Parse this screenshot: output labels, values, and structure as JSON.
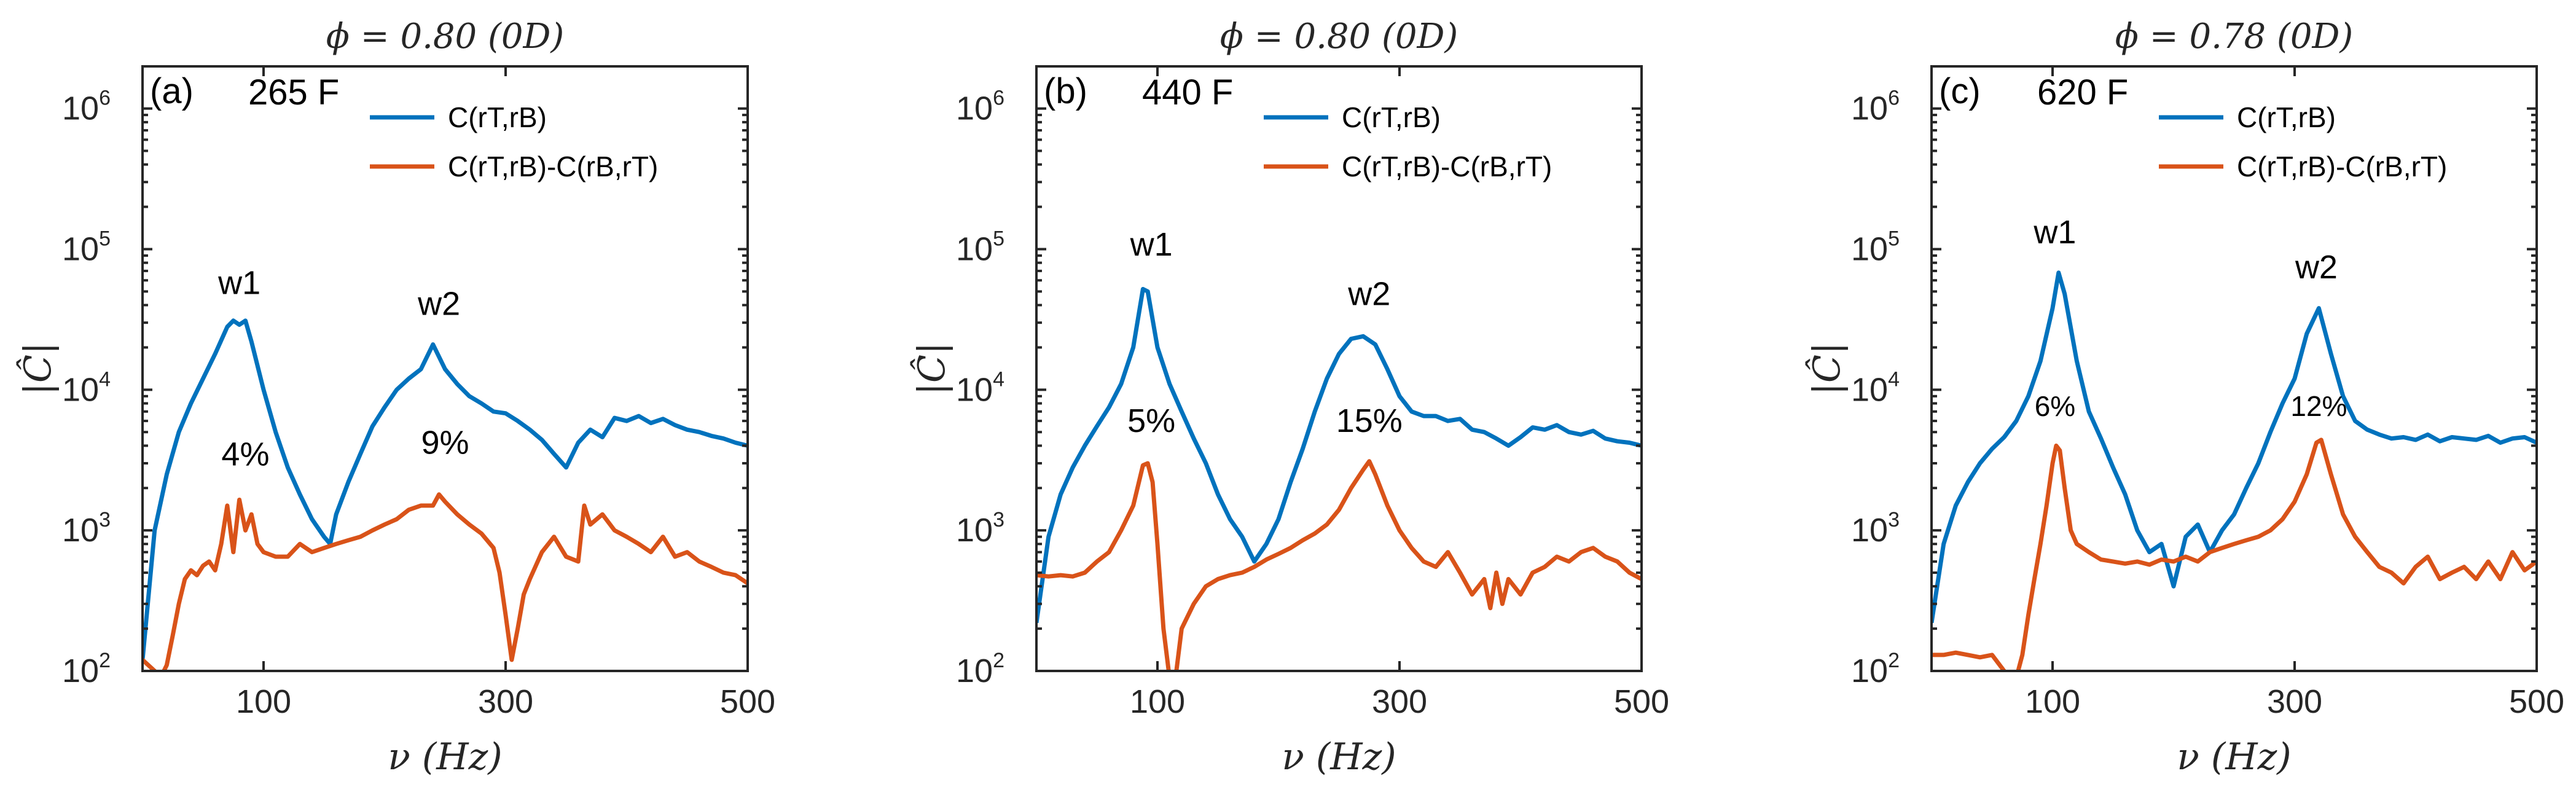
{
  "chart_data": [
    {
      "type": "line",
      "panel": "(a)",
      "fuel_label": "265 F",
      "title": "ϕ = 0.80 (0D)",
      "xlabel": "ν (Hz)",
      "ylabel": "|Ĉ|",
      "xlim": [
        0,
        500
      ],
      "ylim_log10": [
        2,
        6.3
      ],
      "xticks": [
        100,
        300,
        500
      ],
      "yticks": [
        {
          "base": "10",
          "exp": "2"
        },
        {
          "base": "10",
          "exp": "3"
        },
        {
          "base": "10",
          "exp": "4"
        },
        {
          "base": "10",
          "exp": "5"
        },
        {
          "base": "10",
          "exp": "6"
        }
      ],
      "legend_position": "top-right",
      "series": [
        {
          "name": "C(rT,rB)",
          "color": "#0072BD",
          "x": [
            0,
            10,
            20,
            30,
            40,
            50,
            60,
            70,
            75,
            80,
            85,
            90,
            100,
            110,
            120,
            130,
            140,
            150,
            155,
            160,
            170,
            180,
            190,
            200,
            210,
            220,
            230,
            240,
            250,
            260,
            270,
            280,
            290,
            300,
            310,
            320,
            330,
            340,
            350,
            360,
            370,
            380,
            390,
            400,
            410,
            420,
            430,
            440,
            450,
            460,
            470,
            480,
            490,
            500
          ],
          "y": [
            120,
            1000,
            2500,
            5000,
            8000,
            12000,
            18000,
            28000,
            31000,
            29000,
            31000,
            22000,
            10000,
            5000,
            2800,
            1800,
            1200,
            900,
            800,
            1300,
            2200,
            3500,
            5500,
            7500,
            10000,
            12000,
            14000,
            21000,
            14000,
            11000,
            9000,
            8000,
            7000,
            6800,
            6000,
            5200,
            4400,
            3500,
            2800,
            4200,
            5200,
            4600,
            6300,
            6000,
            6500,
            5800,
            6200,
            5600,
            5200,
            5000,
            4700,
            4500,
            4200,
            4000
          ]
        },
        {
          "name": "C(rT,rB)-C(rB,rT)",
          "color": "#D95319",
          "x": [
            0,
            10,
            15,
            20,
            25,
            30,
            35,
            40,
            45,
            50,
            55,
            60,
            65,
            70,
            75,
            80,
            85,
            90,
            95,
            100,
            110,
            120,
            130,
            140,
            150,
            160,
            170,
            180,
            190,
            200,
            210,
            220,
            230,
            240,
            245,
            250,
            260,
            270,
            280,
            290,
            295,
            300,
            305,
            310,
            315,
            320,
            330,
            340,
            350,
            360,
            365,
            370,
            380,
            390,
            400,
            410,
            420,
            430,
            440,
            450,
            460,
            470,
            480,
            490,
            500
          ],
          "y": [
            120,
            100,
            90,
            110,
            180,
            300,
            450,
            520,
            480,
            560,
            600,
            520,
            800,
            1500,
            700,
            1650,
            1000,
            1300,
            800,
            700,
            650,
            650,
            800,
            700,
            750,
            800,
            850,
            900,
            1000,
            1100,
            1200,
            1400,
            1500,
            1500,
            1800,
            1600,
            1300,
            1100,
            950,
            750,
            500,
            250,
            120,
            200,
            350,
            450,
            700,
            900,
            650,
            600,
            1500,
            1100,
            1300,
            1000,
            900,
            800,
            700,
            900,
            650,
            700,
            600,
            550,
            500,
            480,
            420
          ]
        }
      ],
      "annotations": [
        {
          "text": "w1",
          "x": 80,
          "y": 48000
        },
        {
          "text": "w2",
          "x": 245,
          "y": 34000
        },
        {
          "text": "4%",
          "x": 85,
          "y": 2900
        },
        {
          "text": "9%",
          "x": 250,
          "y": 3500
        }
      ]
    },
    {
      "type": "line",
      "panel": "(b)",
      "fuel_label": "440 F",
      "title": "ϕ = 0.80 (0D)",
      "xlabel": "ν (Hz)",
      "ylabel": "|Ĉ|",
      "xlim": [
        0,
        500
      ],
      "ylim_log10": [
        2,
        6.3
      ],
      "xticks": [
        100,
        300,
        500
      ],
      "yticks": [
        {
          "base": "10",
          "exp": "2"
        },
        {
          "base": "10",
          "exp": "3"
        },
        {
          "base": "10",
          "exp": "4"
        },
        {
          "base": "10",
          "exp": "5"
        },
        {
          "base": "10",
          "exp": "6"
        }
      ],
      "legend_position": "top-right",
      "series": [
        {
          "name": "C(rT,rB)",
          "color": "#0072BD",
          "x": [
            0,
            10,
            20,
            30,
            40,
            50,
            60,
            70,
            80,
            88,
            92,
            100,
            110,
            120,
            130,
            140,
            150,
            160,
            170,
            180,
            190,
            200,
            210,
            220,
            230,
            240,
            250,
            260,
            270,
            280,
            290,
            300,
            310,
            320,
            330,
            340,
            350,
            360,
            370,
            380,
            390,
            400,
            410,
            420,
            430,
            440,
            450,
            460,
            470,
            480,
            490,
            500
          ],
          "y": [
            220,
            900,
            1800,
            2800,
            4000,
            5500,
            7500,
            11000,
            20000,
            52000,
            50000,
            20000,
            11000,
            7000,
            4500,
            3000,
            1800,
            1200,
            900,
            600,
            800,
            1200,
            2200,
            3800,
            7000,
            12000,
            18000,
            23000,
            24000,
            21000,
            14000,
            9000,
            7000,
            6500,
            6500,
            6000,
            6200,
            5200,
            5000,
            4500,
            4000,
            4600,
            5400,
            5200,
            5600,
            5000,
            4800,
            5100,
            4500,
            4300,
            4200,
            4000
          ]
        },
        {
          "name": "C(rT,rB)-C(rB,rT)",
          "color": "#D95319",
          "x": [
            0,
            10,
            20,
            30,
            40,
            50,
            60,
            70,
            80,
            88,
            92,
            96,
            100,
            105,
            110,
            115,
            120,
            130,
            140,
            150,
            160,
            170,
            180,
            190,
            200,
            210,
            220,
            230,
            240,
            250,
            260,
            270,
            275,
            280,
            290,
            300,
            310,
            320,
            330,
            340,
            350,
            360,
            370,
            375,
            380,
            385,
            390,
            400,
            410,
            420,
            430,
            440,
            450,
            460,
            470,
            480,
            490,
            500
          ],
          "y": [
            480,
            470,
            480,
            470,
            500,
            600,
            700,
            1000,
            1500,
            2900,
            3000,
            2200,
            800,
            200,
            80,
            90,
            200,
            300,
            400,
            450,
            480,
            500,
            550,
            620,
            680,
            750,
            850,
            950,
            1100,
            1400,
            2000,
            2700,
            3100,
            2500,
            1500,
            1000,
            750,
            600,
            550,
            700,
            500,
            350,
            450,
            280,
            500,
            300,
            450,
            350,
            500,
            550,
            650,
            600,
            700,
            750,
            650,
            600,
            500,
            450
          ]
        }
      ],
      "annotations": [
        {
          "text": "w1",
          "x": 95,
          "y": 90000
        },
        {
          "text": "w2",
          "x": 275,
          "y": 40000
        },
        {
          "text": "5%",
          "x": 95,
          "y": 5000
        },
        {
          "text": "15%",
          "x": 275,
          "y": 5000
        }
      ]
    },
    {
      "type": "line",
      "panel": "(c)",
      "fuel_label": "620 F",
      "title": "ϕ = 0.78 (0D)",
      "xlabel": "ν (Hz)",
      "ylabel": "|Ĉ|",
      "xlim": [
        0,
        500
      ],
      "ylim_log10": [
        2,
        6.3
      ],
      "xticks": [
        100,
        300,
        500
      ],
      "yticks": [
        {
          "base": "10",
          "exp": "2"
        },
        {
          "base": "10",
          "exp": "3"
        },
        {
          "base": "10",
          "exp": "4"
        },
        {
          "base": "10",
          "exp": "5"
        },
        {
          "base": "10",
          "exp": "6"
        }
      ],
      "legend_position": "top-right",
      "series": [
        {
          "name": "C(rT,rB)",
          "color": "#0072BD",
          "x": [
            0,
            10,
            20,
            30,
            40,
            50,
            60,
            70,
            80,
            90,
            100,
            105,
            110,
            120,
            130,
            140,
            150,
            160,
            170,
            180,
            190,
            200,
            210,
            220,
            230,
            240,
            250,
            260,
            270,
            280,
            290,
            300,
            310,
            320,
            330,
            340,
            350,
            360,
            370,
            380,
            390,
            400,
            410,
            420,
            430,
            440,
            450,
            460,
            470,
            480,
            490,
            500
          ],
          "y": [
            220,
            800,
            1500,
            2200,
            3000,
            3800,
            4600,
            6000,
            9000,
            16000,
            38000,
            68000,
            48000,
            16000,
            7000,
            4500,
            2800,
            1800,
            1000,
            700,
            800,
            400,
            900,
            1100,
            700,
            1000,
            1300,
            2000,
            3000,
            5000,
            8000,
            12000,
            25000,
            38000,
            18000,
            9000,
            6000,
            5200,
            4800,
            4500,
            4600,
            4400,
            4800,
            4300,
            4600,
            4500,
            4400,
            4700,
            4200,
            4500,
            4600,
            4200
          ]
        },
        {
          "name": "C(rT,rB)-C(rB,rT)",
          "color": "#D95319",
          "x": [
            0,
            10,
            20,
            30,
            40,
            50,
            60,
            65,
            70,
            75,
            80,
            85,
            90,
            95,
            100,
            103,
            106,
            110,
            115,
            120,
            130,
            140,
            150,
            160,
            170,
            180,
            190,
            200,
            210,
            220,
            230,
            240,
            250,
            260,
            270,
            280,
            290,
            300,
            310,
            318,
            322,
            330,
            340,
            350,
            360,
            370,
            380,
            390,
            400,
            410,
            420,
            430,
            440,
            450,
            460,
            470,
            480,
            490,
            500
          ],
          "y": [
            130,
            130,
            135,
            130,
            125,
            130,
            100,
            70,
            80,
            130,
            250,
            450,
            800,
            1500,
            3000,
            4000,
            3700,
            2000,
            1000,
            800,
            700,
            620,
            600,
            580,
            600,
            570,
            620,
            600,
            650,
            600,
            700,
            750,
            800,
            850,
            900,
            1000,
            1200,
            1600,
            2500,
            4200,
            4400,
            2500,
            1300,
            900,
            700,
            550,
            500,
            420,
            550,
            650,
            450,
            500,
            550,
            450,
            600,
            450,
            700,
            520,
            600
          ]
        }
      ],
      "annotations": [
        {
          "text": "w1",
          "x": 102,
          "y": 110000
        },
        {
          "text": "w2",
          "x": 318,
          "y": 62000
        },
        {
          "text": "6%",
          "x": 102,
          "y": 6500
        },
        {
          "text": "12%",
          "x": 320,
          "y": 6500
        }
      ]
    }
  ]
}
